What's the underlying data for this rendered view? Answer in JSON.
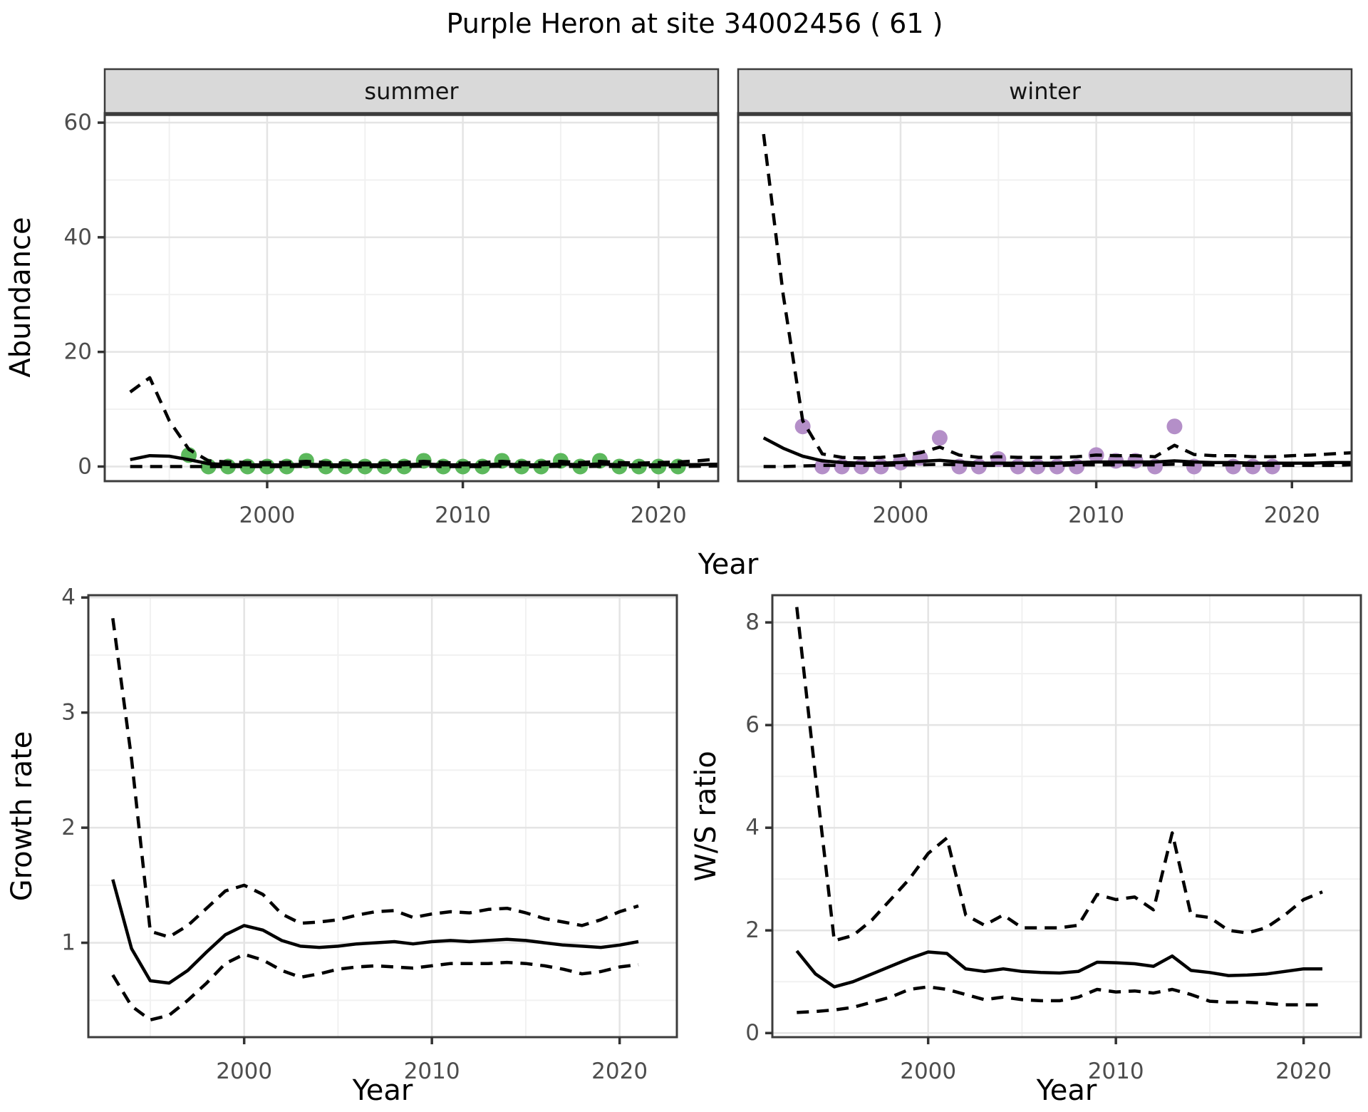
{
  "title": "Purple Heron at site 34002456 ( 61 )",
  "labels": {
    "top_xlabel": "Year",
    "top_ylabel": "Abundance"
  },
  "colors": {
    "summer_point": "#5cb85c",
    "winter_point": "#b48fc8",
    "line": "#000000",
    "grid_major": "#e4e4e4",
    "grid_minor": "#f1f1f1",
    "panel_border": "#3c3c3c",
    "tick": "#333333",
    "tick_label": "#4d4d4d",
    "strip_fill": "#d9d9d9",
    "strip_text": "#141414",
    "axis_title": "#000000",
    "background": "#ffffff"
  },
  "chart_data": [
    {
      "panel": "summer",
      "type": "line",
      "facet_label": "summer",
      "xlim": [
        1991.7,
        2023.05
      ],
      "ylim": [
        -2.55,
        61.5
      ],
      "x_ticks": [
        2000,
        2010,
        2020
      ],
      "x_minor": [
        1995,
        2005,
        2015
      ],
      "y_ticks": [
        0,
        20,
        40,
        60
      ],
      "y_minor": [
        10,
        30,
        50
      ],
      "show_y_tick_labels": true,
      "years": [
        1993,
        1994,
        1995,
        1996,
        1997,
        1998,
        1999,
        2000,
        2001,
        2002,
        2003,
        2004,
        2005,
        2006,
        2007,
        2008,
        2009,
        2010,
        2011,
        2012,
        2013,
        2014,
        2015,
        2016,
        2017,
        2018,
        2019,
        2020,
        2021,
        2022,
        2023
      ],
      "series": [
        {
          "name": "upper-ci",
          "style": "dashed",
          "values": [
            13,
            15.5,
            8,
            3,
            1,
            0.8,
            0.7,
            0.7,
            0.7,
            0.9,
            0.7,
            0.6,
            0.6,
            0.6,
            0.7,
            0.9,
            0.7,
            0.6,
            0.7,
            0.9,
            0.7,
            0.7,
            0.9,
            0.7,
            0.9,
            0.7,
            0.6,
            0.7,
            0.8,
            1.0,
            1.3
          ]
        },
        {
          "name": "fit",
          "style": "solid",
          "values": [
            1.2,
            1.9,
            1.8,
            1.2,
            0.5,
            0.35,
            0.3,
            0.3,
            0.3,
            0.4,
            0.3,
            0.3,
            0.3,
            0.3,
            0.3,
            0.45,
            0.3,
            0.3,
            0.3,
            0.45,
            0.3,
            0.3,
            0.45,
            0.3,
            0.45,
            0.3,
            0.3,
            0.3,
            0.3,
            0.35,
            0.4
          ]
        },
        {
          "name": "lower-ci",
          "style": "dashed",
          "values": [
            0,
            0,
            0,
            0,
            0,
            0,
            0,
            0,
            0,
            0.05,
            0,
            0,
            0,
            0,
            0,
            0.05,
            0,
            0,
            0,
            0.05,
            0,
            0,
            0.05,
            0,
            0.05,
            0,
            0,
            0,
            0,
            0.05,
            0.1
          ]
        }
      ],
      "points": {
        "name": "observed-summer",
        "color_key": "summer_point",
        "years": [
          1996,
          1997,
          1998,
          1999,
          2000,
          2001,
          2002,
          2003,
          2004,
          2005,
          2006,
          2007,
          2008,
          2009,
          2010,
          2011,
          2012,
          2013,
          2014,
          2015,
          2016,
          2017,
          2018,
          2019,
          2020,
          2021
        ],
        "values": [
          2,
          0,
          0,
          0,
          0,
          0,
          1,
          0,
          0,
          0,
          0,
          0,
          1,
          0,
          0,
          0,
          1,
          0,
          0,
          1,
          0,
          1,
          0,
          0,
          0,
          0
        ]
      }
    },
    {
      "panel": "winter",
      "type": "line",
      "facet_label": "winter",
      "xlim": [
        1991.7,
        2023.05
      ],
      "ylim": [
        -2.55,
        61.5
      ],
      "x_ticks": [
        2000,
        2010,
        2020
      ],
      "x_minor": [
        1995,
        2005,
        2015
      ],
      "y_ticks": [
        0,
        20,
        40,
        60
      ],
      "y_minor": [
        10,
        30,
        50
      ],
      "show_y_tick_labels": false,
      "years": [
        1993,
        1994,
        1995,
        1996,
        1997,
        1998,
        1999,
        2000,
        2001,
        2002,
        2003,
        2004,
        2005,
        2006,
        2007,
        2008,
        2009,
        2010,
        2011,
        2012,
        2013,
        2014,
        2015,
        2016,
        2017,
        2018,
        2019,
        2020,
        2021,
        2022,
        2023
      ],
      "series": [
        {
          "name": "upper-ci",
          "style": "dashed",
          "values": [
            58,
            30,
            8,
            2.2,
            1.6,
            1.5,
            1.6,
            1.9,
            2.4,
            3.4,
            2.0,
            1.6,
            1.7,
            1.6,
            1.6,
            1.6,
            1.7,
            2.0,
            1.9,
            1.9,
            1.7,
            3.7,
            2.1,
            1.9,
            1.9,
            1.7,
            1.7,
            1.9,
            2.0,
            2.2,
            2.4
          ]
        },
        {
          "name": "fit",
          "style": "solid",
          "values": [
            5,
            3.2,
            1.8,
            1.0,
            0.7,
            0.6,
            0.6,
            0.7,
            0.9,
            1.1,
            0.8,
            0.6,
            0.6,
            0.6,
            0.6,
            0.6,
            0.7,
            0.8,
            0.8,
            0.8,
            0.8,
            1.0,
            0.8,
            0.7,
            0.7,
            0.6,
            0.6,
            0.6,
            0.6,
            0.7,
            0.7
          ]
        },
        {
          "name": "lower-ci",
          "style": "dashed",
          "values": [
            0,
            0,
            0.1,
            0.2,
            0.2,
            0.2,
            0.2,
            0.3,
            0.3,
            0.4,
            0.3,
            0.2,
            0.2,
            0.2,
            0.2,
            0.2,
            0.3,
            0.3,
            0.3,
            0.3,
            0.3,
            0.4,
            0.3,
            0.3,
            0.3,
            0.2,
            0.2,
            0.2,
            0.2,
            0.2,
            0.3
          ]
        }
      ],
      "points": {
        "name": "observed-winter",
        "color_key": "winter_point",
        "years": [
          1995,
          1996,
          1997,
          1998,
          1999,
          2000,
          2001,
          2002,
          2003,
          2004,
          2005,
          2006,
          2007,
          2008,
          2009,
          2010,
          2011,
          2012,
          2013,
          2014,
          2015,
          2017,
          2018,
          2019
        ],
        "values": [
          7,
          0,
          0,
          0,
          0,
          0.7,
          1.5,
          5,
          0,
          0,
          1.3,
          0,
          0,
          0,
          0,
          2,
          1,
          1,
          0,
          7,
          0,
          0,
          0,
          0
        ]
      }
    },
    {
      "panel": "growth",
      "type": "line",
      "facet_label": null,
      "ylabel": "Growth rate",
      "xlabel": "Year",
      "xlim": [
        1991.7,
        2023.05
      ],
      "ylim": [
        0.18,
        4.02
      ],
      "x_ticks": [
        2000,
        2010,
        2020
      ],
      "x_minor": [
        1995,
        2005,
        2015
      ],
      "y_ticks": [
        1,
        2,
        3,
        4
      ],
      "y_minor": [
        0.5,
        1.5,
        2.5,
        3.5
      ],
      "show_y_tick_labels": true,
      "years": [
        1993,
        1994,
        1995,
        1996,
        1997,
        1998,
        1999,
        2000,
        2001,
        2002,
        2003,
        2004,
        2005,
        2006,
        2007,
        2008,
        2009,
        2010,
        2011,
        2012,
        2013,
        2014,
        2015,
        2016,
        2017,
        2018,
        2019,
        2020,
        2021
      ],
      "series": [
        {
          "name": "upper-ci",
          "style": "dashed",
          "values": [
            3.82,
            2.6,
            1.1,
            1.05,
            1.15,
            1.3,
            1.45,
            1.5,
            1.42,
            1.25,
            1.17,
            1.18,
            1.2,
            1.24,
            1.27,
            1.28,
            1.22,
            1.25,
            1.27,
            1.26,
            1.29,
            1.3,
            1.26,
            1.21,
            1.18,
            1.15,
            1.2,
            1.27,
            1.32
          ]
        },
        {
          "name": "fit",
          "style": "solid",
          "values": [
            1.55,
            0.95,
            0.67,
            0.65,
            0.76,
            0.92,
            1.07,
            1.15,
            1.11,
            1.02,
            0.97,
            0.96,
            0.97,
            0.99,
            1.0,
            1.01,
            0.99,
            1.01,
            1.02,
            1.01,
            1.02,
            1.03,
            1.02,
            1.0,
            0.98,
            0.97,
            0.96,
            0.98,
            1.01
          ]
        },
        {
          "name": "lower-ci",
          "style": "dashed",
          "values": [
            0.72,
            0.45,
            0.33,
            0.37,
            0.5,
            0.65,
            0.82,
            0.9,
            0.85,
            0.76,
            0.7,
            0.73,
            0.77,
            0.79,
            0.8,
            0.79,
            0.78,
            0.8,
            0.82,
            0.82,
            0.82,
            0.83,
            0.82,
            0.8,
            0.77,
            0.73,
            0.75,
            0.79,
            0.81
          ]
        }
      ],
      "points": null
    },
    {
      "panel": "ws",
      "type": "line",
      "facet_label": null,
      "ylabel": "W/S ratio",
      "xlabel": "Year",
      "xlim": [
        1991.7,
        2023.05
      ],
      "ylim": [
        -0.08,
        8.53
      ],
      "x_ticks": [
        2000,
        2010,
        2020
      ],
      "x_minor": [
        1995,
        2005,
        2015
      ],
      "y_ticks": [
        0,
        2,
        4,
        6,
        8
      ],
      "y_minor": [
        1,
        3,
        5,
        7
      ],
      "show_y_tick_labels": true,
      "years": [
        1993,
        1994,
        1995,
        1996,
        1997,
        1998,
        1999,
        2000,
        2001,
        2002,
        2003,
        2004,
        2005,
        2006,
        2007,
        2008,
        2009,
        2010,
        2011,
        2012,
        2013,
        2014,
        2015,
        2016,
        2017,
        2018,
        2019,
        2020,
        2021
      ],
      "series": [
        {
          "name": "upper-ci",
          "style": "dashed",
          "values": [
            8.3,
            5.0,
            1.8,
            1.9,
            2.2,
            2.6,
            3.0,
            3.5,
            3.8,
            2.3,
            2.1,
            2.3,
            2.05,
            2.05,
            2.05,
            2.1,
            2.7,
            2.6,
            2.65,
            2.4,
            3.9,
            2.3,
            2.25,
            2.0,
            1.95,
            2.05,
            2.3,
            2.6,
            2.75
          ]
        },
        {
          "name": "fit",
          "style": "solid",
          "values": [
            1.6,
            1.15,
            0.9,
            1.0,
            1.15,
            1.3,
            1.45,
            1.58,
            1.55,
            1.25,
            1.2,
            1.25,
            1.2,
            1.18,
            1.17,
            1.2,
            1.38,
            1.37,
            1.35,
            1.3,
            1.5,
            1.22,
            1.18,
            1.12,
            1.13,
            1.15,
            1.2,
            1.25,
            1.25
          ]
        },
        {
          "name": "lower-ci",
          "style": "dashed",
          "values": [
            0.4,
            0.42,
            0.45,
            0.5,
            0.6,
            0.7,
            0.85,
            0.9,
            0.85,
            0.75,
            0.65,
            0.7,
            0.65,
            0.63,
            0.63,
            0.7,
            0.85,
            0.8,
            0.82,
            0.78,
            0.85,
            0.75,
            0.62,
            0.6,
            0.6,
            0.58,
            0.55,
            0.55,
            0.55
          ]
        }
      ],
      "points": null
    }
  ]
}
